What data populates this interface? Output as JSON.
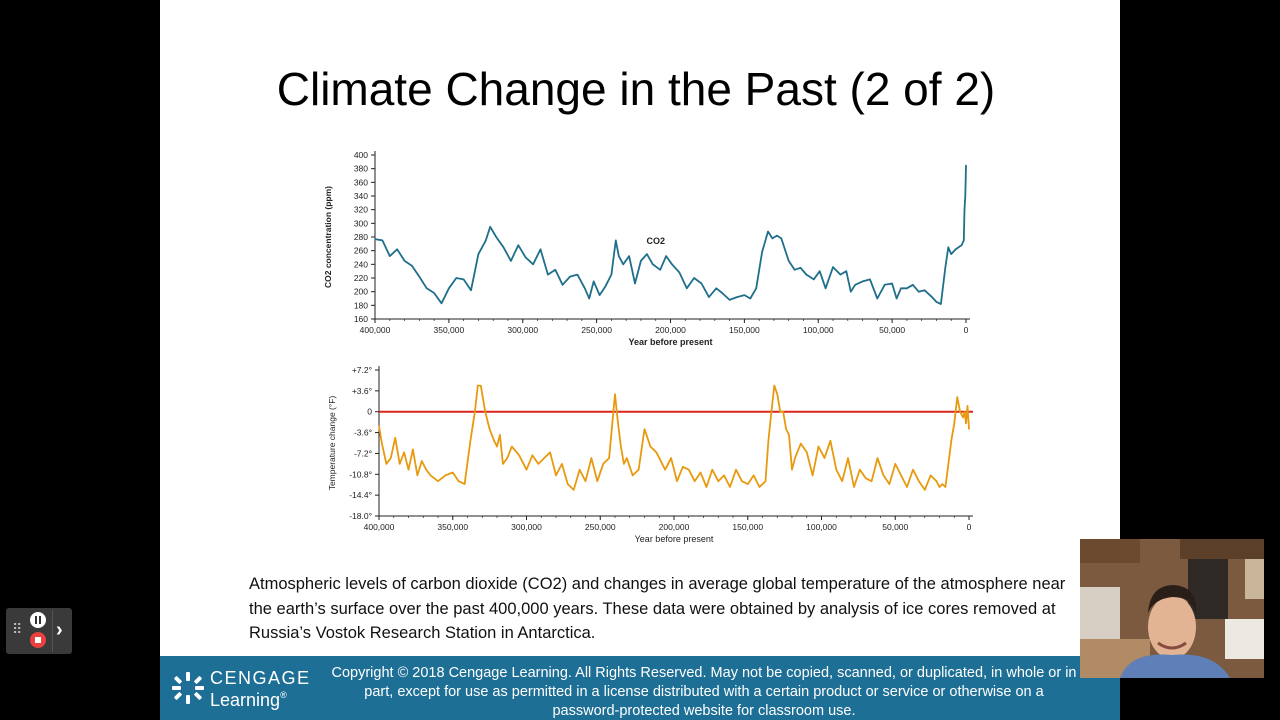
{
  "slide": {
    "title": "Climate Change in the Past (2 of 2)",
    "caption": "Atmospheric levels of carbon dioxide (CO2) and changes in average global temperature of the atmosphere near the earth’s surface over the past 400,000 years. These data were obtained by analysis of ice cores removed at Russia’s Vostok Research Station in Antarctica.",
    "footer": {
      "logo_line1": "CENGAGE",
      "logo_line2": "Learning",
      "logo_reg": "®",
      "copyright": "Copyright © 2018 Cengage Learning. All Rights Reserved. May not be copied, scanned, or duplicated, in whole or in part, except for use as permitted in a license distributed with a certain product or service or otherwise on a password-protected website for classroom use."
    }
  },
  "recorder": {
    "pause_icon": "pause-icon",
    "stop_icon": "stop-icon",
    "expand_icon": "chevron-right-icon"
  },
  "colors": {
    "co2_line": "#1f6f8b",
    "temp_line": "#e89a0f",
    "zero_line": "#d9261c",
    "footer": "#1e6f95"
  },
  "chart_data": [
    {
      "type": "line",
      "ylabel": "CO2 concentration (ppm)",
      "xlabel": "Year before present",
      "series_label": "CO2",
      "x_ticks": [
        400000,
        350000,
        300000,
        250000,
        200000,
        150000,
        100000,
        50000,
        0
      ],
      "x_tick_labels": [
        "400,000",
        "350,000",
        "300,000",
        "250,000",
        "200,000",
        "150,000",
        "100,000",
        "50,000",
        "0"
      ],
      "y_ticks": [
        160,
        180,
        200,
        220,
        240,
        260,
        280,
        300,
        320,
        340,
        360,
        380,
        400
      ],
      "xlim": [
        400000,
        0
      ],
      "ylim": [
        160,
        400
      ],
      "x": [
        400000,
        395000,
        390000,
        385000,
        380000,
        375000,
        370000,
        365000,
        360000,
        355000,
        350000,
        345000,
        340000,
        335000,
        330000,
        325000,
        322000,
        318000,
        313000,
        308000,
        303000,
        298000,
        293000,
        288000,
        283000,
        278000,
        273000,
        268000,
        263000,
        258000,
        255000,
        252000,
        248000,
        244000,
        240000,
        237000,
        235000,
        232000,
        228000,
        224000,
        220000,
        216000,
        212000,
        207000,
        203000,
        199000,
        194000,
        189000,
        184000,
        179000,
        174000,
        169000,
        165000,
        160000,
        155000,
        150000,
        146000,
        142000,
        138000,
        134000,
        131000,
        128000,
        125000,
        120000,
        116000,
        112000,
        108000,
        103000,
        99000,
        95000,
        90000,
        85000,
        81000,
        78000,
        75000,
        70000,
        65000,
        60000,
        55000,
        50000,
        47000,
        44000,
        40000,
        36000,
        32000,
        28000,
        23000,
        20000,
        17000,
        14000,
        12000,
        10000,
        7000,
        5000,
        3000,
        1500,
        1000,
        500,
        0
      ],
      "values": [
        277,
        275,
        252,
        262,
        245,
        238,
        222,
        205,
        198,
        183,
        205,
        220,
        218,
        202,
        255,
        275,
        295,
        280,
        265,
        245,
        268,
        250,
        240,
        262,
        225,
        232,
        210,
        222,
        225,
        205,
        190,
        215,
        195,
        208,
        225,
        275,
        252,
        240,
        252,
        212,
        245,
        255,
        240,
        232,
        252,
        240,
        228,
        205,
        220,
        212,
        192,
        205,
        198,
        188,
        192,
        195,
        190,
        205,
        258,
        288,
        278,
        282,
        278,
        245,
        232,
        235,
        225,
        218,
        230,
        205,
        236,
        225,
        230,
        200,
        210,
        215,
        218,
        190,
        210,
        212,
        190,
        205,
        205,
        210,
        200,
        202,
        192,
        185,
        182,
        235,
        265,
        255,
        262,
        265,
        268,
        275,
        320,
        340,
        385
      ]
    },
    {
      "type": "line",
      "ylabel": "Temperature change (°F)",
      "xlabel": "Year before present",
      "x_ticks": [
        400000,
        350000,
        300000,
        250000,
        200000,
        150000,
        100000,
        50000,
        0
      ],
      "x_tick_labels": [
        "400,000",
        "350,000",
        "300,000",
        "250,000",
        "200,000",
        "150,000",
        "100,000",
        "50,000",
        "0"
      ],
      "y_ticks": [
        7.2,
        3.6,
        0,
        -3.6,
        -7.2,
        -10.8,
        -14.4,
        -18.0
      ],
      "y_tick_labels": [
        "+7.2°",
        "+3.6°",
        "0",
        "-3.6°",
        "-7.2°",
        "-10.8°",
        "-14.4°",
        "-18.0°"
      ],
      "xlim": [
        400000,
        0
      ],
      "ylim": [
        -18.0,
        7.2
      ],
      "reference_line": 0,
      "x": [
        400000,
        398000,
        395000,
        392000,
        389000,
        386000,
        383000,
        380000,
        377000,
        374000,
        371000,
        368000,
        365000,
        360000,
        355000,
        350000,
        346000,
        342000,
        338000,
        335000,
        333000,
        331000,
        328000,
        325000,
        322000,
        320000,
        318000,
        316000,
        313000,
        310000,
        305000,
        300000,
        296000,
        292000,
        288000,
        284000,
        280000,
        276000,
        272000,
        268000,
        264000,
        260000,
        256000,
        252000,
        248000,
        244000,
        240000,
        238000,
        236000,
        234000,
        232000,
        228000,
        224000,
        220000,
        216000,
        212000,
        210000,
        206000,
        202000,
        198000,
        194000,
        190000,
        186000,
        182000,
        178000,
        174000,
        170000,
        166000,
        162000,
        158000,
        154000,
        150000,
        146000,
        142000,
        138000,
        136000,
        134000,
        132000,
        130000,
        128000,
        126000,
        124000,
        122000,
        120000,
        118000,
        114000,
        110000,
        106000,
        102000,
        98000,
        94000,
        90000,
        86000,
        82000,
        78000,
        74000,
        70000,
        66000,
        62000,
        58000,
        54000,
        50000,
        46000,
        42000,
        38000,
        34000,
        30000,
        26000,
        22000,
        20000,
        18000,
        16000,
        14000,
        12000,
        10000,
        8000,
        6000,
        4000,
        3000,
        2000,
        1000,
        0
      ],
      "values": [
        -2.5,
        -5.5,
        -9,
        -8,
        -4.5,
        -9,
        -7,
        -10,
        -6.5,
        -11,
        -8.5,
        -10,
        -11,
        -12,
        -11,
        -10.5,
        -12,
        -12.5,
        -5,
        0,
        4.5,
        4.5,
        0,
        -3,
        -5,
        -6,
        -4,
        -9,
        -8,
        -6,
        -7.5,
        -10,
        -7.5,
        -9,
        -8,
        -7,
        -11,
        -9,
        -12.5,
        -13.5,
        -10,
        -12,
        -8,
        -12,
        -9,
        -8,
        3,
        -2,
        -6,
        -9,
        -8,
        -11,
        -10,
        -3,
        -6,
        -7,
        -8,
        -10,
        -8,
        -12,
        -9.5,
        -10,
        -12,
        -10.5,
        -13,
        -10,
        -12,
        -11,
        -13,
        -10,
        -12,
        -12.5,
        -11,
        -13,
        -12,
        -5,
        0,
        4.5,
        3,
        0,
        0,
        -3,
        -4,
        -10,
        -8,
        -5.5,
        -7,
        -11,
        -6,
        -8,
        -5,
        -10,
        -12,
        -8,
        -13,
        -10,
        -11.5,
        -12,
        -8,
        -11,
        -12.5,
        -9,
        -11,
        -13,
        -10,
        -12,
        -13.5,
        -11,
        -12,
        -13,
        -12.5,
        -13,
        -9,
        -5,
        -2,
        2.5,
        0,
        -1,
        0,
        -2,
        1,
        -3
      ]
    }
  ]
}
